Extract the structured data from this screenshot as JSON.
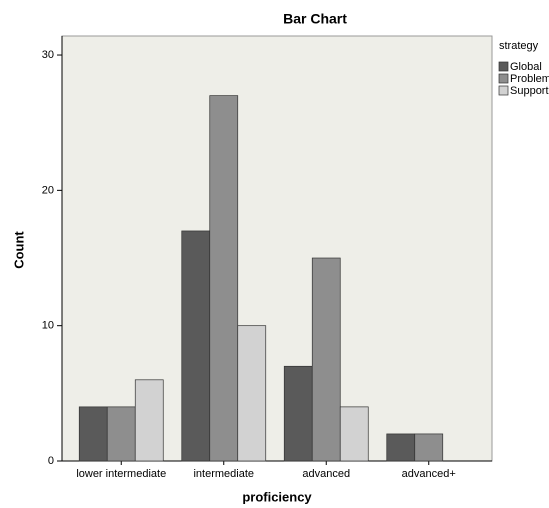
{
  "chart_data": {
    "type": "bar",
    "title": "Bar Chart",
    "x_label": "proficiency",
    "y_label": "Count",
    "legend_title": "strategy",
    "categories": [
      "lower intermediate",
      "intermediate",
      "advanced",
      "advanced+"
    ],
    "series": [
      {
        "name": "Global",
        "color": "#5a5a5a",
        "values": [
          4,
          17,
          7,
          2
        ]
      },
      {
        "name": "Problem",
        "color": "#8e8e8e",
        "values": [
          4,
          27,
          15,
          2
        ]
      },
      {
        "name": "Support",
        "color": "#d2d2d2",
        "values": [
          6,
          10,
          4,
          0
        ]
      }
    ],
    "ylim": [
      0,
      31
    ],
    "yticks": [
      0,
      10,
      20,
      30
    ],
    "legend": "right"
  }
}
